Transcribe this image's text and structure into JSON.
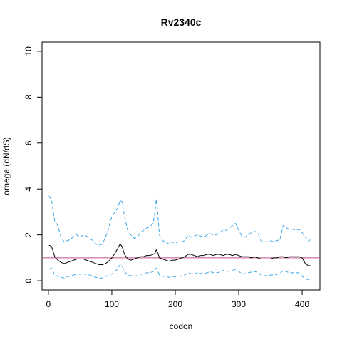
{
  "chart_data": {
    "type": "line",
    "title": "Rv2340c",
    "xlabel": "codon",
    "ylabel": "omega (dN/dS)",
    "xlim": [
      -10,
      428
    ],
    "ylim": [
      -0.4,
      10.4
    ],
    "xticks": [
      0,
      100,
      200,
      300,
      400
    ],
    "yticks": [
      0,
      2,
      4,
      6,
      8,
      10
    ],
    "grid": false,
    "reference_line": {
      "y": 1,
      "color": "#c0508a"
    },
    "series_colors": {
      "omega": "#000000",
      "upper": "#3aa6e6",
      "lower": "#3aa6e6"
    },
    "x": [
      1,
      5,
      10,
      15,
      20,
      25,
      30,
      35,
      40,
      45,
      50,
      55,
      60,
      65,
      70,
      75,
      80,
      85,
      90,
      95,
      100,
      105,
      110,
      113,
      116,
      120,
      125,
      130,
      135,
      140,
      145,
      150,
      155,
      160,
      165,
      168,
      170,
      172,
      175,
      180,
      185,
      190,
      195,
      200,
      205,
      210,
      215,
      220,
      225,
      230,
      235,
      240,
      245,
      250,
      255,
      260,
      265,
      270,
      275,
      280,
      285,
      290,
      295,
      300,
      305,
      310,
      315,
      320,
      325,
      330,
      335,
      340,
      345,
      350,
      355,
      360,
      365,
      370,
      375,
      380,
      385,
      390,
      395,
      400,
      405,
      410,
      414
    ],
    "series": [
      {
        "values": [
          1.55,
          1.5,
          1.05,
          0.9,
          0.8,
          0.75,
          0.8,
          0.85,
          0.9,
          0.95,
          0.95,
          0.95,
          0.9,
          0.85,
          0.8,
          0.75,
          0.7,
          0.7,
          0.75,
          0.85,
          1.0,
          1.2,
          1.45,
          1.6,
          1.5,
          1.15,
          0.95,
          0.9,
          0.95,
          1.0,
          1.05,
          1.05,
          1.1,
          1.1,
          1.15,
          1.2,
          1.35,
          1.25,
          1.0,
          0.95,
          0.9,
          0.85,
          0.9,
          0.9,
          0.95,
          1.0,
          1.05,
          1.15,
          1.15,
          1.1,
          1.05,
          1.1,
          1.1,
          1.15,
          1.15,
          1.1,
          1.15,
          1.15,
          1.1,
          1.15,
          1.15,
          1.1,
          1.15,
          1.1,
          1.05,
          1.05,
          1.05,
          1.0,
          1.05,
          1.0,
          0.95,
          0.95,
          0.95,
          0.95,
          1.0,
          1.0,
          1.05,
          1.05,
          1.0,
          1.05,
          1.05,
          1.05,
          1.05,
          1.0,
          0.75,
          0.65,
          0.65
        ]
      },
      {
        "values": [
          3.7,
          3.5,
          2.6,
          2.4,
          1.9,
          1.7,
          1.75,
          1.8,
          1.95,
          2.0,
          1.9,
          2.0,
          1.95,
          1.85,
          1.75,
          1.6,
          1.55,
          1.6,
          1.9,
          2.3,
          2.8,
          3.0,
          3.2,
          3.5,
          3.45,
          2.8,
          2.2,
          2.0,
          1.85,
          1.9,
          2.1,
          2.2,
          2.3,
          2.35,
          2.5,
          3.0,
          3.55,
          3.1,
          2.0,
          1.75,
          1.7,
          1.6,
          1.7,
          1.65,
          1.7,
          1.7,
          1.75,
          2.0,
          1.9,
          1.95,
          2.0,
          1.95,
          1.9,
          2.0,
          2.05,
          2.0,
          2.0,
          2.1,
          2.2,
          2.2,
          2.3,
          2.4,
          2.5,
          2.2,
          1.95,
          1.9,
          2.0,
          2.1,
          2.15,
          2.1,
          1.75,
          1.7,
          1.7,
          1.75,
          1.7,
          1.75,
          1.8,
          2.4,
          2.3,
          2.25,
          2.25,
          2.2,
          2.25,
          2.1,
          1.9,
          1.7,
          1.85
        ]
      },
      {
        "values": [
          0.5,
          0.55,
          0.25,
          0.2,
          0.15,
          0.12,
          0.18,
          0.2,
          0.25,
          0.3,
          0.28,
          0.3,
          0.28,
          0.25,
          0.2,
          0.15,
          0.12,
          0.12,
          0.18,
          0.25,
          0.3,
          0.4,
          0.55,
          0.7,
          0.65,
          0.4,
          0.25,
          0.22,
          0.2,
          0.22,
          0.28,
          0.3,
          0.35,
          0.35,
          0.4,
          0.45,
          0.55,
          0.45,
          0.25,
          0.2,
          0.18,
          0.15,
          0.18,
          0.18,
          0.2,
          0.22,
          0.25,
          0.35,
          0.3,
          0.3,
          0.35,
          0.32,
          0.3,
          0.35,
          0.4,
          0.35,
          0.35,
          0.38,
          0.45,
          0.4,
          0.42,
          0.45,
          0.5,
          0.4,
          0.32,
          0.3,
          0.35,
          0.38,
          0.4,
          0.38,
          0.25,
          0.22,
          0.22,
          0.25,
          0.25,
          0.28,
          0.32,
          0.45,
          0.4,
          0.35,
          0.35,
          0.35,
          0.35,
          0.2,
          0.08,
          0.05,
          0.05
        ]
      }
    ]
  }
}
